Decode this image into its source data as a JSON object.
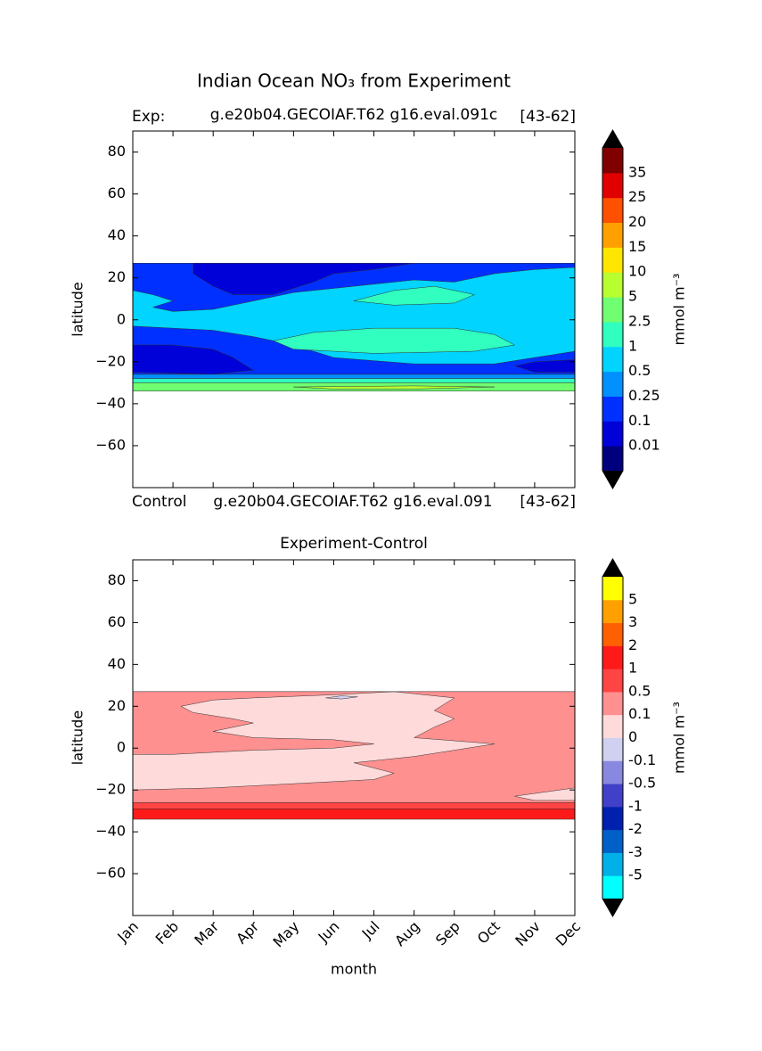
{
  "title": "Indian Ocean NO₃ from Experiment",
  "chart_data": [
    {
      "type": "contour",
      "title_left": "Exp:",
      "title_center": "g.e20b04.GECOIAF.T62 g16.eval.091c",
      "title_right": "[43-62]",
      "footer_left": "Control",
      "footer_center": "g.e20b04.GECOIAF.T62 g16.eval.091",
      "footer_right": "[43-62]",
      "ylabel": "latitude",
      "xlim": [
        1,
        12
      ],
      "xticks": [
        1,
        2,
        3,
        4,
        5,
        6,
        7,
        8,
        9,
        10,
        11,
        12
      ],
      "ylim": [
        -80,
        90
      ],
      "yticks": [
        {
          "value": -60,
          "label": "−60"
        },
        {
          "value": -40,
          "label": "−40"
        },
        {
          "value": -20,
          "label": "−20"
        },
        0,
        20,
        40,
        60,
        80
      ],
      "colorbar": {
        "label": "mmol m⁻³",
        "levels": [
          0.01,
          0.1,
          0.25,
          0.5,
          1,
          2.5,
          5,
          10,
          15,
          20,
          25,
          35
        ],
        "colors": [
          "#00007f",
          "#0000d8",
          "#0030ff",
          "#0090ff",
          "#00d4ff",
          "#30ffc0",
          "#70ff70",
          "#b8ff30",
          "#ffe600",
          "#ffa000",
          "#ff5000",
          "#e00000",
          "#800000"
        ],
        "extend_color": "#000000"
      }
    },
    {
      "type": "contour",
      "title_center": "Experiment-Control",
      "ylabel": "latitude",
      "xlabel": "month",
      "xlim": [
        1,
        12
      ],
      "xticks": [
        {
          "value": 1,
          "label": "Jan"
        },
        {
          "value": 2,
          "label": "Feb"
        },
        {
          "value": 3,
          "label": "Mar"
        },
        {
          "value": 4,
          "label": "Apr"
        },
        {
          "value": 5,
          "label": "May"
        },
        {
          "value": 6,
          "label": "Jun"
        },
        {
          "value": 7,
          "label": "Jul"
        },
        {
          "value": 8,
          "label": "Aug"
        },
        {
          "value": 9,
          "label": "Sep"
        },
        {
          "value": 10,
          "label": "Oct"
        },
        {
          "value": 11,
          "label": "Nov"
        },
        {
          "value": 12,
          "label": "Dec"
        }
      ],
      "ylim": [
        -80,
        90
      ],
      "yticks": [
        {
          "value": -60,
          "label": "−60"
        },
        {
          "value": -40,
          "label": "−40"
        },
        {
          "value": -20,
          "label": "−20"
        },
        0,
        20,
        40,
        60,
        80
      ],
      "colorbar": {
        "label": "mmol m⁻³",
        "levels": [
          -5,
          -3,
          -2,
          -1,
          -0.5,
          -0.1,
          0,
          0.1,
          0.5,
          1,
          2,
          3,
          5
        ],
        "colors": [
          "#00ffff",
          "#00b0e8",
          "#0060c8",
          "#0020b0",
          "#4040c8",
          "#8888e0",
          "#d0d0f0",
          "#ffdada",
          "#ff9090",
          "#ff4444",
          "#ff1a1a",
          "#ff6000",
          "#ffa000",
          "#ffff00"
        ],
        "extend_color": "#000000"
      }
    }
  ]
}
